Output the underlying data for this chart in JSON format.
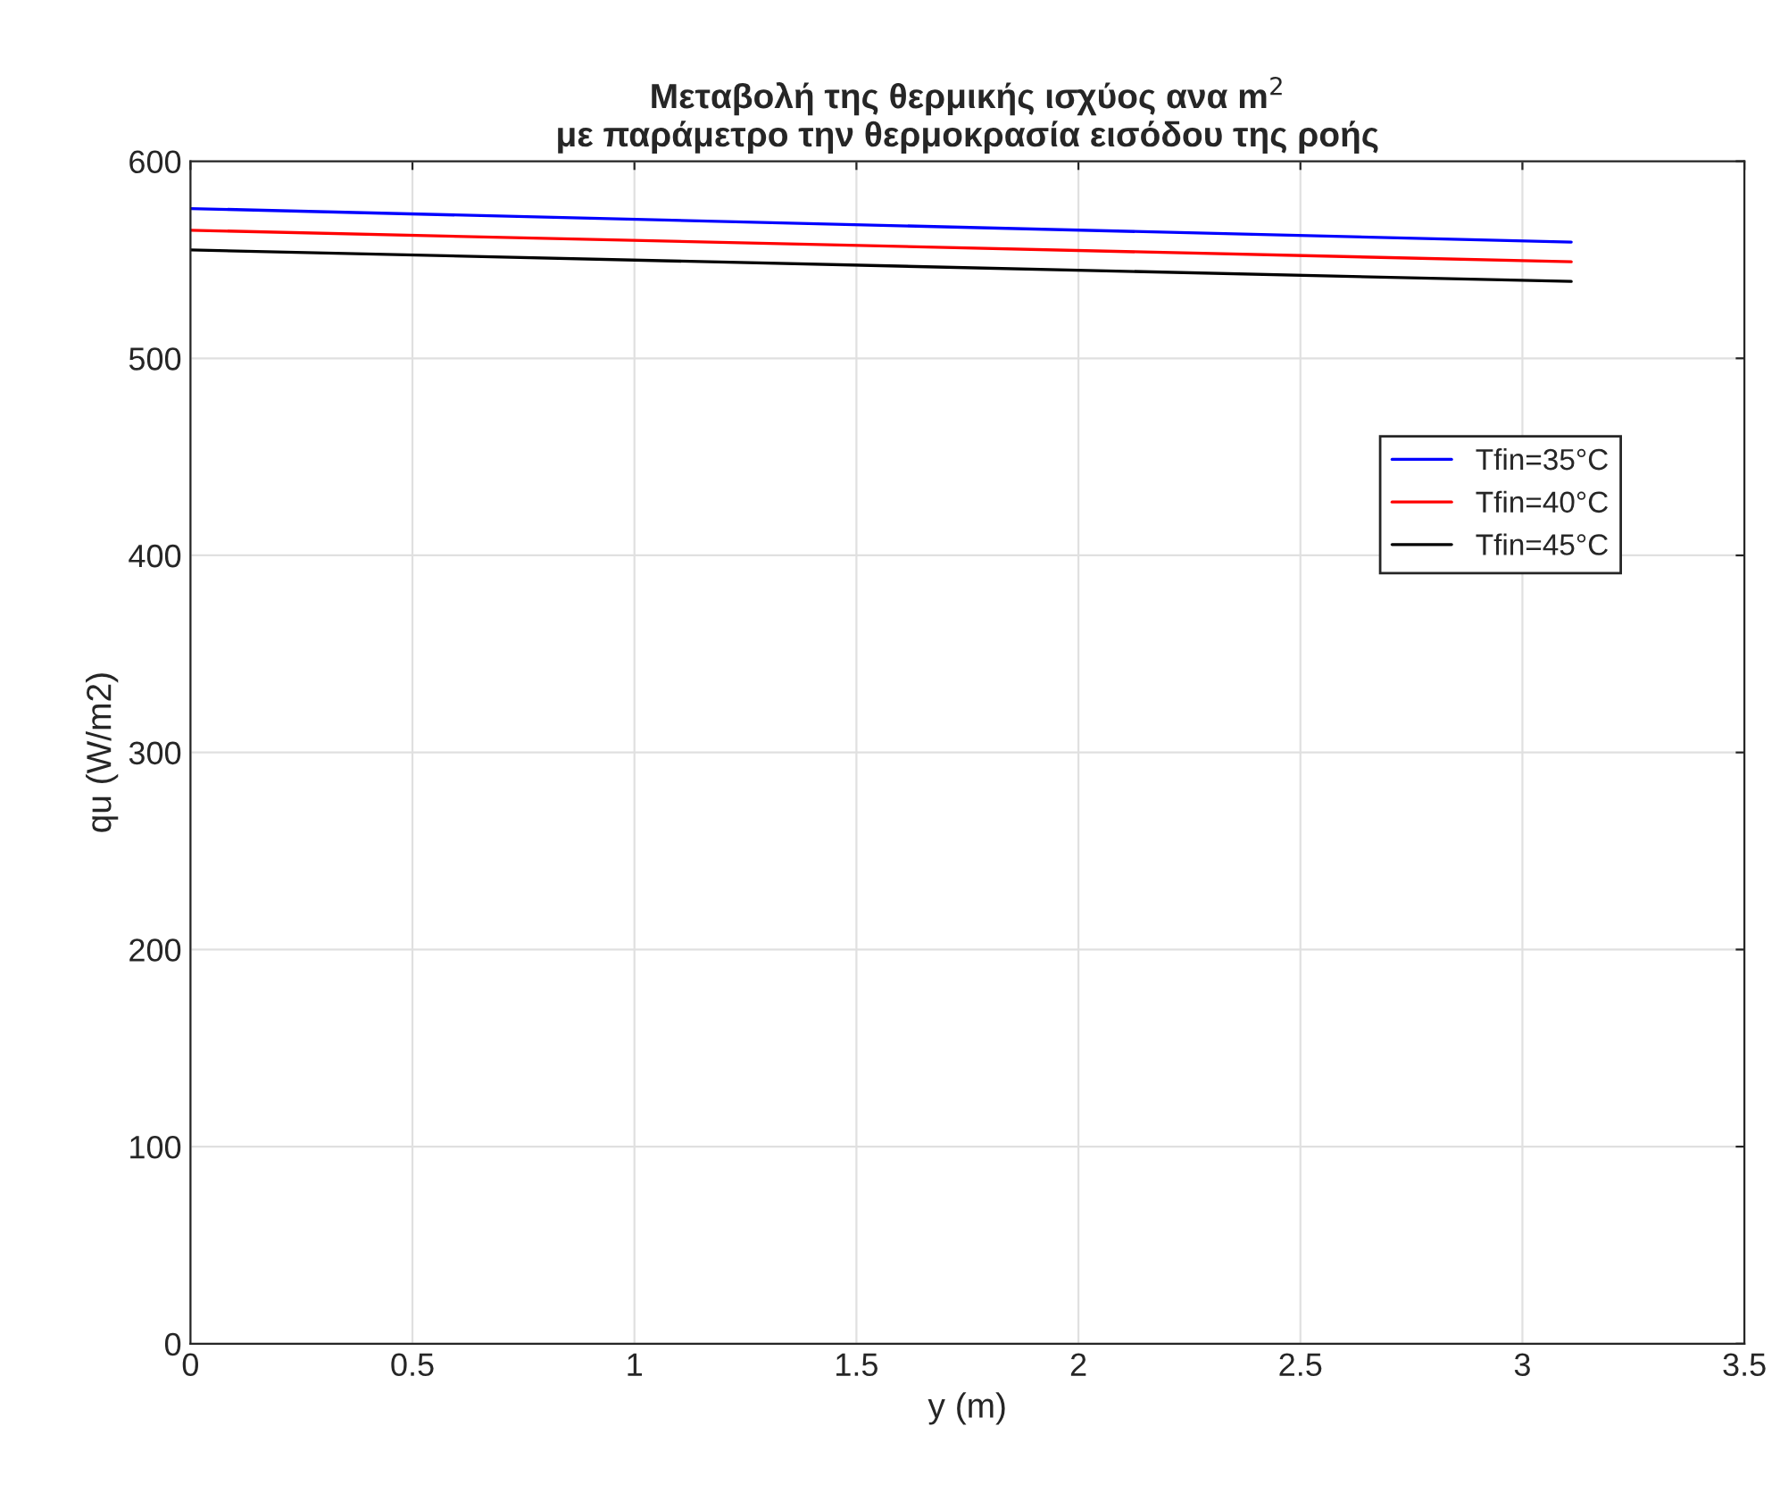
{
  "chart_data": {
    "type": "line",
    "title": "Μεταβολή της θερμικής ισχύος ανα m$^{2}$\nμε παράμετρο την θερμοκρασία εισόδου της ροής",
    "xlabel": "y (m)",
    "ylabel": "qu (W/m2)",
    "x": [
      0,
      3.11
    ],
    "series": [
      {
        "name": "Tfin=35°C",
        "color": "#0000ff",
        "values": [
          576,
          559
        ]
      },
      {
        "name": "Tfin=40°C",
        "color": "#ff0000",
        "values": [
          565,
          549
        ]
      },
      {
        "name": "Tfin=45°C",
        "color": "#000000",
        "values": [
          555,
          539
        ]
      }
    ],
    "xlim": [
      0,
      3.5
    ],
    "xticks": [
      0,
      0.5,
      1,
      1.5,
      2,
      2.5,
      3,
      3.5
    ],
    "ylim": [
      0,
      600
    ],
    "yticks": [
      0,
      100,
      200,
      300,
      400,
      500,
      600
    ],
    "grid": true,
    "legend": "top right",
    "line_style": "solid"
  }
}
